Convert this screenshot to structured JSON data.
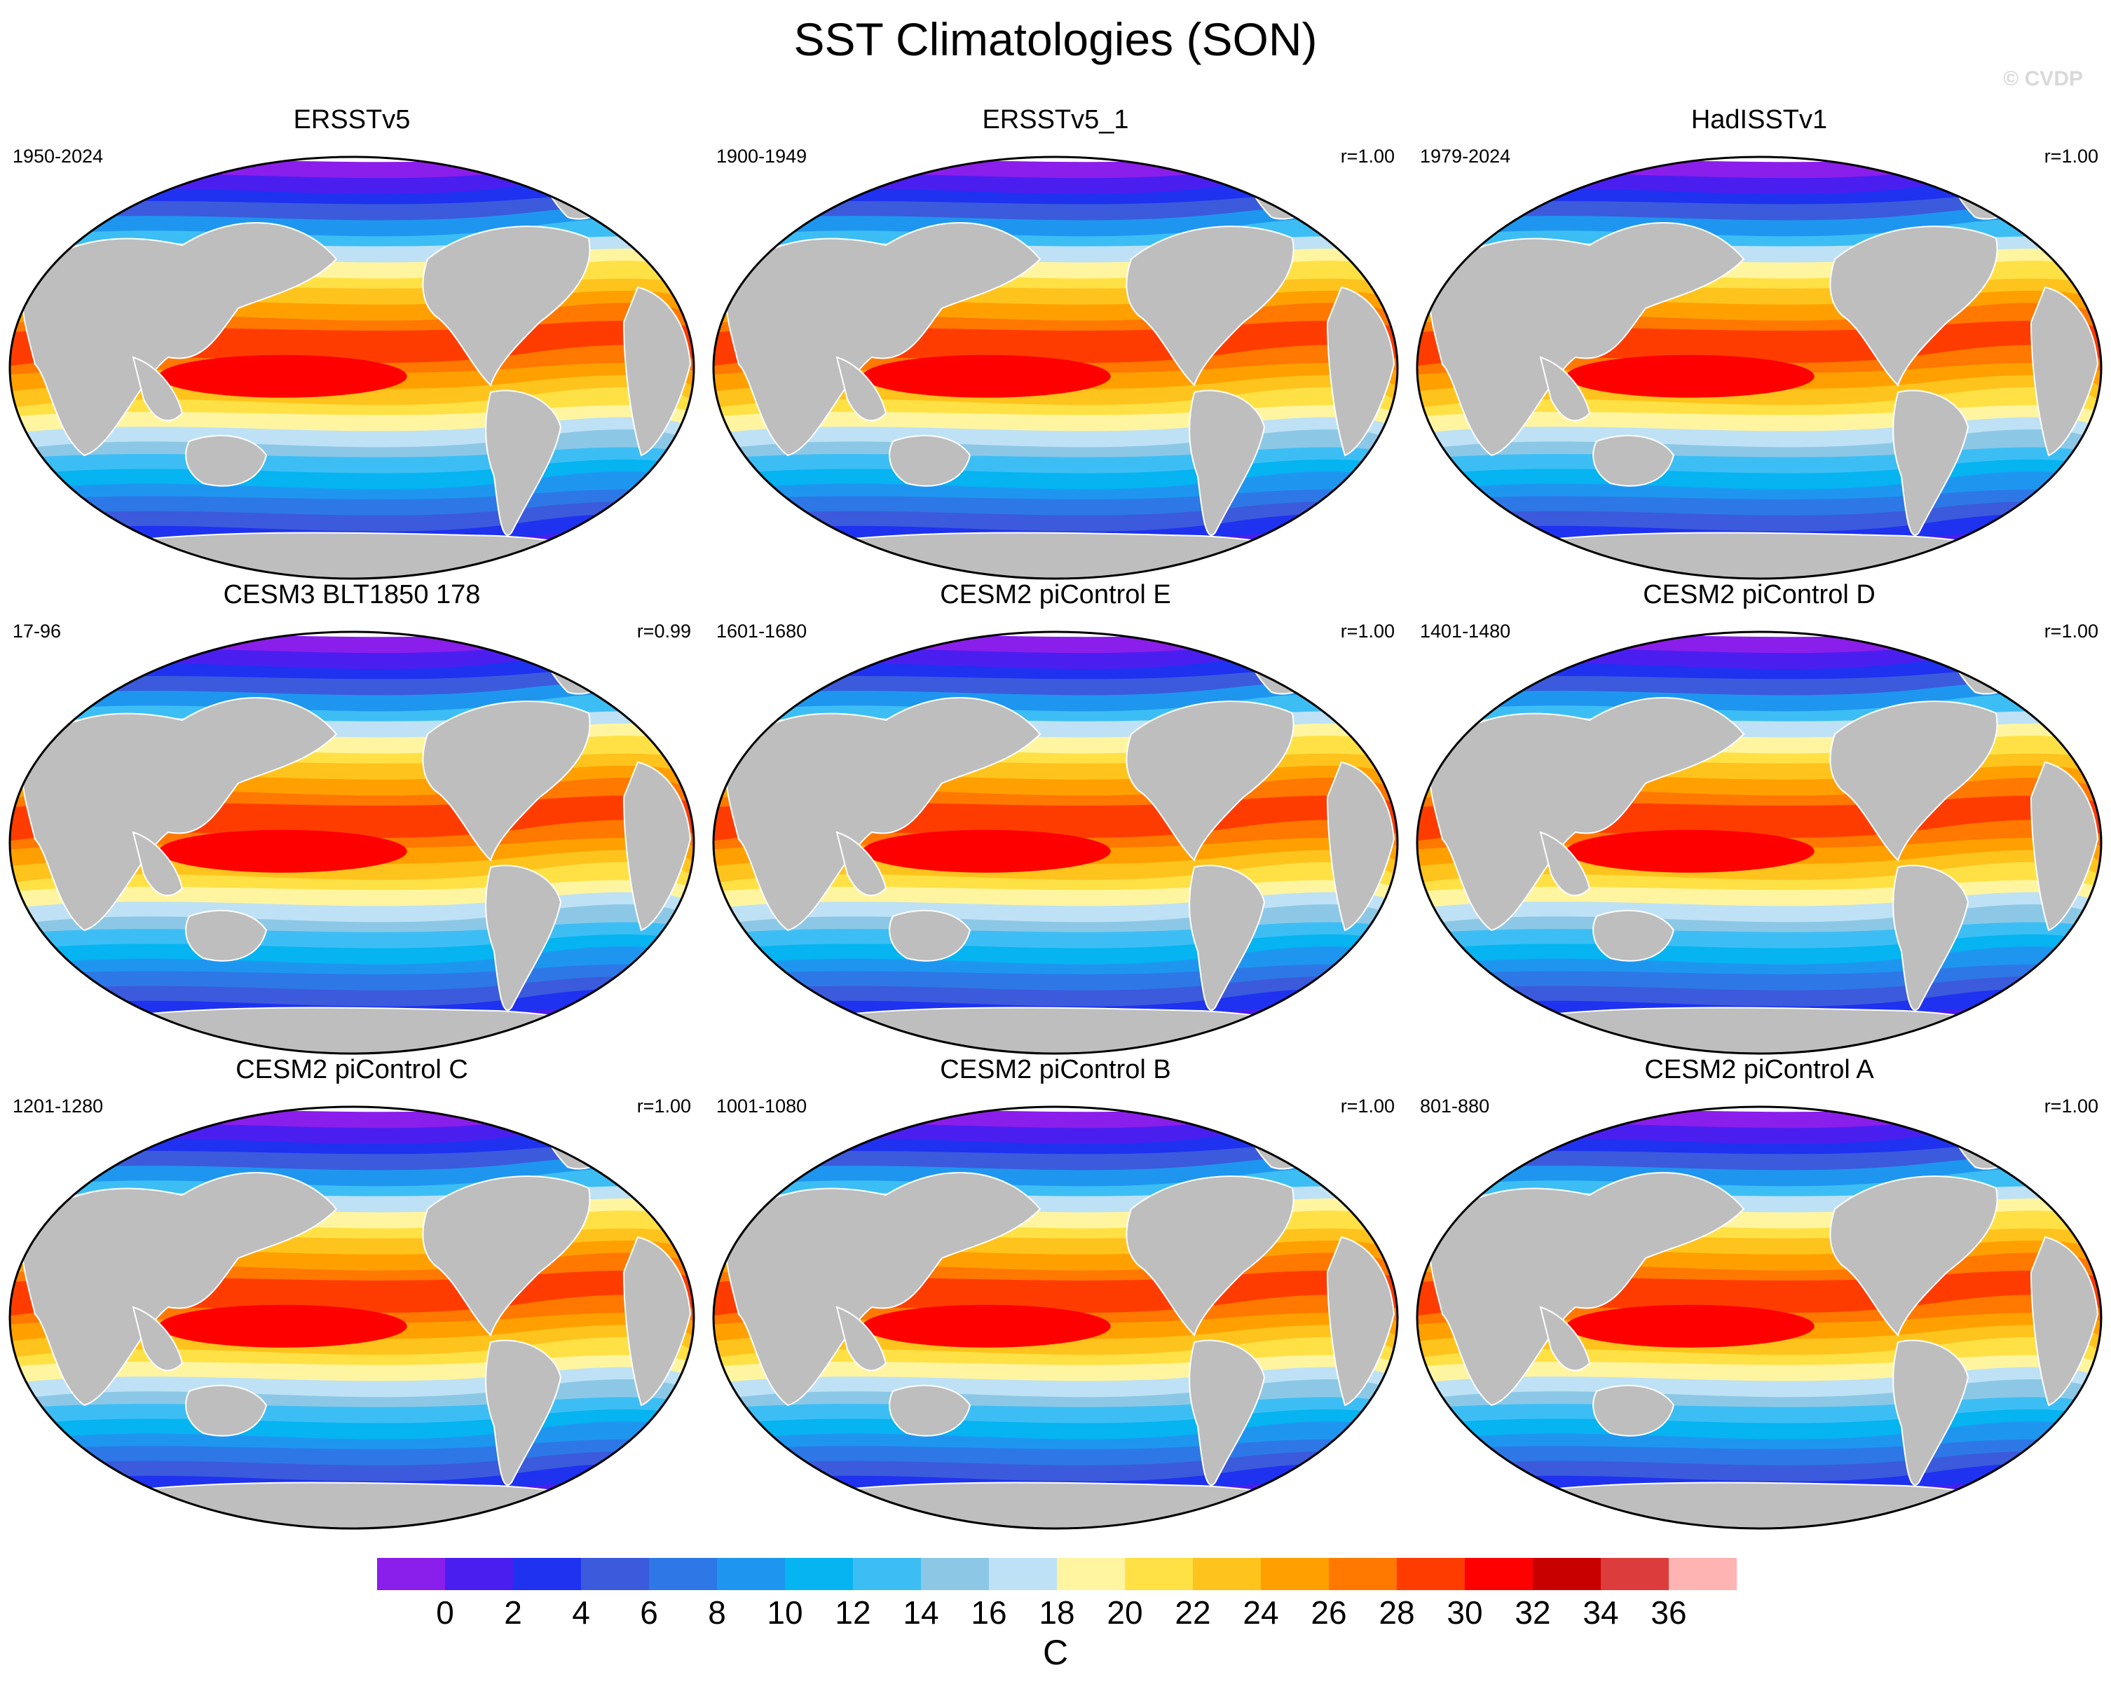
{
  "title": "SST Climatologies (SON)",
  "watermark": "© CVDP",
  "chart_data": {
    "type": "heatmap",
    "title": "SST Climatologies (SON)",
    "projection": "Robinson world map, 9 panels in a 3x3 grid",
    "units": "C",
    "colorbar": {
      "ticks": [
        "0",
        "2",
        "4",
        "6",
        "8",
        "10",
        "12",
        "14",
        "16",
        "18",
        "20",
        "22",
        "24",
        "26",
        "28",
        "30",
        "32",
        "34",
        "36"
      ],
      "levels": [
        0,
        2,
        4,
        6,
        8,
        10,
        12,
        14,
        16,
        18,
        20,
        22,
        24,
        26,
        28,
        30,
        32,
        34,
        36
      ],
      "colors": [
        "#8a1eea",
        "#4b1ef0",
        "#1e32f0",
        "#3c5adc",
        "#2d78e6",
        "#1e96f0",
        "#05b4f0",
        "#3cbef5",
        "#8cc8e6",
        "#bee1f5",
        "#fff5a0",
        "#ffe146",
        "#ffc31e",
        "#ffa000",
        "#ff7800",
        "#ff3c00",
        "#ff0000",
        "#c80000",
        "#dc3c3c",
        "#ffb4b4"
      ]
    },
    "panels": [
      {
        "name": "ERSSTv5",
        "period": "1950-2024",
        "r": ""
      },
      {
        "name": "ERSSTv5_1",
        "period": "1900-1949",
        "r": "r=1.00"
      },
      {
        "name": "HadISSTv1",
        "period": "1979-2024",
        "r": "r=1.00"
      },
      {
        "name": "CESM3 BLT1850 178",
        "period": "17-96",
        "r": "r=0.99"
      },
      {
        "name": "CESM2 piControl E",
        "period": "1601-1680",
        "r": "r=1.00"
      },
      {
        "name": "CESM2 piControl D",
        "period": "1401-1480",
        "r": "r=1.00"
      },
      {
        "name": "CESM2 piControl C",
        "period": "1201-1280",
        "r": "r=1.00"
      },
      {
        "name": "CESM2 piControl B",
        "period": "1001-1080",
        "r": "r=1.00"
      },
      {
        "name": "CESM2 piControl A",
        "period": "801-880",
        "r": "r=1.00"
      }
    ]
  },
  "colors": {
    "land": "#bebebe",
    "frame": "#000000",
    "background": "#ffffff"
  }
}
